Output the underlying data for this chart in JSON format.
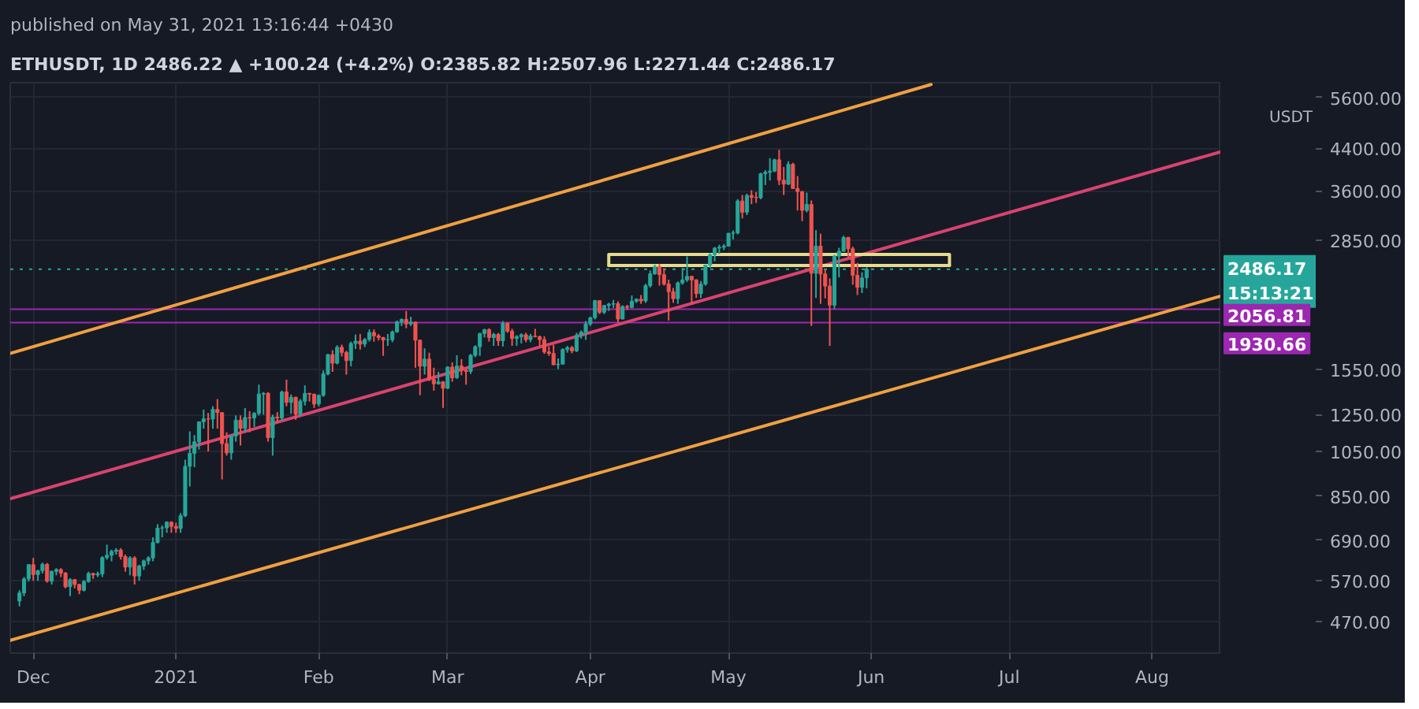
{
  "chart_data": {
    "type": "candlestick",
    "title": "published on May 31, 2021 13:16:44 +0430",
    "subtitle": "ETHUSDT, 1D 2486.22 ▲ +100.24 (+4.2%) O:2385.82 H:2507.96 L:2271.44 C:2486.17",
    "ylabel": "USDT",
    "x": [
      "2020-11-28",
      "2020-11-29",
      "2020-11-30",
      "2020-12-01",
      "2020-12-02",
      "2020-12-03",
      "2020-12-04",
      "2020-12-05",
      "2020-12-06",
      "2020-12-07",
      "2020-12-08",
      "2020-12-09",
      "2020-12-10",
      "2020-12-11",
      "2020-12-12",
      "2020-12-13",
      "2020-12-14",
      "2020-12-15",
      "2020-12-16",
      "2020-12-17",
      "2020-12-18",
      "2020-12-19",
      "2020-12-20",
      "2020-12-21",
      "2020-12-22",
      "2020-12-23",
      "2020-12-24",
      "2020-12-25",
      "2020-12-26",
      "2020-12-27",
      "2020-12-28",
      "2020-12-29",
      "2020-12-30",
      "2020-12-31",
      "2021-01-01",
      "2021-01-02",
      "2021-01-03",
      "2021-01-04",
      "2021-01-05",
      "2021-01-06",
      "2021-01-07",
      "2021-01-08",
      "2021-01-09",
      "2021-01-10",
      "2021-01-11",
      "2021-01-12",
      "2021-01-13",
      "2021-01-14",
      "2021-01-15",
      "2021-01-16",
      "2021-01-17",
      "2021-01-18",
      "2021-01-19",
      "2021-01-20",
      "2021-01-21",
      "2021-01-22",
      "2021-01-23",
      "2021-01-24",
      "2021-01-25",
      "2021-01-26",
      "2021-01-27",
      "2021-01-28",
      "2021-01-29",
      "2021-01-30",
      "2021-01-31",
      "2021-02-01",
      "2021-02-02",
      "2021-02-03",
      "2021-02-04",
      "2021-02-05",
      "2021-02-06",
      "2021-02-07",
      "2021-02-08",
      "2021-02-09",
      "2021-02-10",
      "2021-02-11",
      "2021-02-12",
      "2021-02-13",
      "2021-02-14",
      "2021-02-15",
      "2021-02-16",
      "2021-02-17",
      "2021-02-18",
      "2021-02-19",
      "2021-02-20",
      "2021-02-21",
      "2021-02-22",
      "2021-02-23",
      "2021-02-24",
      "2021-02-25",
      "2021-02-26",
      "2021-02-27",
      "2021-02-28",
      "2021-03-01",
      "2021-03-02",
      "2021-03-03",
      "2021-03-04",
      "2021-03-05",
      "2021-03-06",
      "2021-03-07",
      "2021-03-08",
      "2021-03-09",
      "2021-03-10",
      "2021-03-11",
      "2021-03-12",
      "2021-03-13",
      "2021-03-14",
      "2021-03-15",
      "2021-03-16",
      "2021-03-17",
      "2021-03-18",
      "2021-03-19",
      "2021-03-20",
      "2021-03-21",
      "2021-03-22",
      "2021-03-23",
      "2021-03-24",
      "2021-03-25",
      "2021-03-26",
      "2021-03-27",
      "2021-03-28",
      "2021-03-29",
      "2021-03-30",
      "2021-03-31",
      "2021-04-01",
      "2021-04-02",
      "2021-04-03",
      "2021-04-04",
      "2021-04-05",
      "2021-04-06",
      "2021-04-07",
      "2021-04-08",
      "2021-04-09",
      "2021-04-10",
      "2021-04-11",
      "2021-04-12",
      "2021-04-13",
      "2021-04-14",
      "2021-04-15",
      "2021-04-16",
      "2021-04-17",
      "2021-04-18",
      "2021-04-19",
      "2021-04-20",
      "2021-04-21",
      "2021-04-22",
      "2021-04-23",
      "2021-04-24",
      "2021-04-25",
      "2021-04-26",
      "2021-04-27",
      "2021-04-28",
      "2021-04-29",
      "2021-04-30",
      "2021-05-01",
      "2021-05-02",
      "2021-05-03",
      "2021-05-04",
      "2021-05-05",
      "2021-05-06",
      "2021-05-07",
      "2021-05-08",
      "2021-05-09",
      "2021-05-10",
      "2021-05-11",
      "2021-05-12",
      "2021-05-13",
      "2021-05-14",
      "2021-05-15",
      "2021-05-16",
      "2021-05-17",
      "2021-05-18",
      "2021-05-19",
      "2021-05-20",
      "2021-05-21",
      "2021-05-22",
      "2021-05-23",
      "2021-05-24",
      "2021-05-25",
      "2021-05-26",
      "2021-05-27",
      "2021-05-28",
      "2021-05-29",
      "2021-05-30",
      "2021-05-31"
    ],
    "ohlc": [
      [
        518,
        545,
        505,
        538
      ],
      [
        538,
        580,
        530,
        575
      ],
      [
        575,
        617,
        568,
        615
      ],
      [
        615,
        635,
        570,
        587
      ],
      [
        587,
        600,
        570,
        598
      ],
      [
        598,
        621,
        590,
        616
      ],
      [
        616,
        620,
        565,
        569
      ],
      [
        569,
        598,
        560,
        596
      ],
      [
        596,
        605,
        585,
        601
      ],
      [
        601,
        605,
        580,
        591
      ],
      [
        591,
        594,
        550,
        554
      ],
      [
        554,
        577,
        530,
        573
      ],
      [
        573,
        575,
        550,
        560
      ],
      [
        560,
        562,
        535,
        545
      ],
      [
        545,
        572,
        542,
        568
      ],
      [
        568,
        595,
        565,
        590
      ],
      [
        590,
        592,
        575,
        586
      ],
      [
        586,
        595,
        580,
        589
      ],
      [
        589,
        640,
        580,
        636
      ],
      [
        636,
        676,
        630,
        643
      ],
      [
        643,
        660,
        625,
        655
      ],
      [
        655,
        665,
        645,
        659
      ],
      [
        659,
        665,
        630,
        639
      ],
      [
        639,
        645,
        595,
        608
      ],
      [
        608,
        640,
        585,
        635
      ],
      [
        635,
        640,
        560,
        583
      ],
      [
        583,
        615,
        570,
        611
      ],
      [
        611,
        630,
        600,
        626
      ],
      [
        626,
        640,
        615,
        635
      ],
      [
        635,
        700,
        625,
        683
      ],
      [
        683,
        745,
        680,
        731
      ],
      [
        731,
        740,
        700,
        732
      ],
      [
        732,
        755,
        715,
        752
      ],
      [
        752,
        755,
        715,
        737
      ],
      [
        737,
        750,
        715,
        730
      ],
      [
        730,
        785,
        715,
        775
      ],
      [
        775,
        1010,
        770,
        979
      ],
      [
        979,
        1155,
        890,
        1041
      ],
      [
        1041,
        1135,
        975,
        1099
      ],
      [
        1099,
        1210,
        1060,
        1208
      ],
      [
        1208,
        1280,
        1170,
        1225
      ],
      [
        1225,
        1260,
        1050,
        1224
      ],
      [
        1224,
        1300,
        1170,
        1281
      ],
      [
        1281,
        1345,
        1170,
        1262
      ],
      [
        1262,
        1265,
        920,
        1090
      ],
      [
        1090,
        1150,
        1030,
        1043
      ],
      [
        1043,
        1135,
        1010,
        1130
      ],
      [
        1130,
        1245,
        1100,
        1218
      ],
      [
        1218,
        1245,
        1080,
        1171
      ],
      [
        1171,
        1290,
        1150,
        1233
      ],
      [
        1233,
        1270,
        1150,
        1230
      ],
      [
        1230,
        1265,
        1180,
        1257
      ],
      [
        1257,
        1440,
        1245,
        1377
      ],
      [
        1377,
        1390,
        1250,
        1382
      ],
      [
        1382,
        1390,
        1100,
        1121
      ],
      [
        1121,
        1250,
        1030,
        1236
      ],
      [
        1236,
        1265,
        1200,
        1230
      ],
      [
        1230,
        1400,
        1215,
        1391
      ],
      [
        1391,
        1475,
        1300,
        1324
      ],
      [
        1324,
        1375,
        1255,
        1357
      ],
      [
        1357,
        1360,
        1220,
        1253
      ],
      [
        1253,
        1345,
        1240,
        1332
      ],
      [
        1332,
        1435,
        1305,
        1382
      ],
      [
        1382,
        1385,
        1330,
        1377
      ],
      [
        1377,
        1380,
        1290,
        1314
      ],
      [
        1314,
        1375,
        1300,
        1369
      ],
      [
        1369,
        1540,
        1360,
        1515
      ],
      [
        1515,
        1665,
        1505,
        1660
      ],
      [
        1660,
        1695,
        1530,
        1594
      ],
      [
        1594,
        1735,
        1585,
        1718
      ],
      [
        1718,
        1740,
        1645,
        1677
      ],
      [
        1677,
        1690,
        1510,
        1614
      ],
      [
        1614,
        1765,
        1570,
        1750
      ],
      [
        1750,
        1825,
        1705,
        1769
      ],
      [
        1769,
        1830,
        1700,
        1744
      ],
      [
        1744,
        1795,
        1720,
        1783
      ],
      [
        1783,
        1870,
        1765,
        1843
      ],
      [
        1843,
        1870,
        1765,
        1814
      ],
      [
        1814,
        1830,
        1775,
        1800
      ],
      [
        1800,
        1805,
        1650,
        1779
      ],
      [
        1779,
        1830,
        1730,
        1781
      ],
      [
        1781,
        1860,
        1760,
        1848
      ],
      [
        1848,
        1950,
        1840,
        1938
      ],
      [
        1938,
        1970,
        1900,
        1960
      ],
      [
        1960,
        2040,
        1880,
        1919
      ],
      [
        1919,
        1985,
        1900,
        1935
      ],
      [
        1935,
        1940,
        1560,
        1777
      ],
      [
        1777,
        1780,
        1370,
        1571
      ],
      [
        1571,
        1710,
        1510,
        1625
      ],
      [
        1625,
        1675,
        1465,
        1475
      ],
      [
        1475,
        1560,
        1400,
        1446
      ],
      [
        1446,
        1530,
        1440,
        1459
      ],
      [
        1459,
        1465,
        1290,
        1416
      ],
      [
        1416,
        1570,
        1410,
        1565
      ],
      [
        1565,
        1600,
        1460,
        1487
      ],
      [
        1487,
        1655,
        1480,
        1573
      ],
      [
        1573,
        1625,
        1505,
        1541
      ],
      [
        1541,
        1550,
        1440,
        1533
      ],
      [
        1533,
        1665,
        1515,
        1654
      ],
      [
        1654,
        1735,
        1640,
        1723
      ],
      [
        1723,
        1840,
        1650,
        1834
      ],
      [
        1834,
        1875,
        1800,
        1868
      ],
      [
        1868,
        1880,
        1765,
        1799
      ],
      [
        1799,
        1840,
        1730,
        1826
      ],
      [
        1826,
        1840,
        1730,
        1772
      ],
      [
        1772,
        1945,
        1725,
        1924
      ],
      [
        1924,
        1935,
        1840,
        1854
      ],
      [
        1854,
        1875,
        1730,
        1791
      ],
      [
        1791,
        1820,
        1730,
        1806
      ],
      [
        1806,
        1835,
        1750,
        1823
      ],
      [
        1823,
        1840,
        1760,
        1782
      ],
      [
        1782,
        1830,
        1760,
        1811
      ],
      [
        1811,
        1875,
        1800,
        1807
      ],
      [
        1807,
        1815,
        1730,
        1782
      ],
      [
        1782,
        1810,
        1665,
        1681
      ],
      [
        1681,
        1725,
        1650,
        1669
      ],
      [
        1669,
        1740,
        1580,
        1582
      ],
      [
        1582,
        1630,
        1550,
        1587
      ],
      [
        1587,
        1710,
        1585,
        1700
      ],
      [
        1700,
        1730,
        1675,
        1715
      ],
      [
        1715,
        1730,
        1670,
        1689
      ],
      [
        1689,
        1840,
        1680,
        1817
      ],
      [
        1817,
        1860,
        1790,
        1846
      ],
      [
        1846,
        1945,
        1780,
        1919
      ],
      [
        1919,
        1985,
        1900,
        1977
      ],
      [
        1977,
        2150,
        1960,
        2143
      ],
      [
        2143,
        2145,
        2010,
        2028
      ],
      [
        2028,
        2100,
        2010,
        2093
      ],
      [
        2093,
        2120,
        2040,
        2107
      ],
      [
        2107,
        2150,
        2070,
        2112
      ],
      [
        2112,
        2135,
        1930,
        1964
      ],
      [
        1964,
        2095,
        1960,
        2084
      ],
      [
        2084,
        2100,
        2050,
        2075
      ],
      [
        2075,
        2195,
        2065,
        2135
      ],
      [
        2135,
        2165,
        2120,
        2157
      ],
      [
        2157,
        2200,
        2110,
        2139
      ],
      [
        2139,
        2320,
        2120,
        2299
      ],
      [
        2299,
        2470,
        2280,
        2432
      ],
      [
        2432,
        2540,
        2420,
        2514
      ],
      [
        2514,
        2550,
        2300,
        2422
      ],
      [
        2422,
        2495,
        2300,
        2317
      ],
      [
        2317,
        2365,
        1950,
        2235
      ],
      [
        2235,
        2275,
        2120,
        2162
      ],
      [
        2162,
        2345,
        2110,
        2330
      ],
      [
        2330,
        2500,
        2310,
        2363
      ],
      [
        2363,
        2640,
        2340,
        2403
      ],
      [
        2403,
        2410,
        2100,
        2363
      ],
      [
        2363,
        2370,
        2170,
        2214
      ],
      [
        2214,
        2350,
        2170,
        2316
      ],
      [
        2316,
        2540,
        2300,
        2534
      ],
      [
        2534,
        2680,
        2500,
        2662
      ],
      [
        2662,
        2760,
        2580,
        2746
      ],
      [
        2746,
        2790,
        2670,
        2757
      ],
      [
        2757,
        2800,
        2720,
        2772
      ],
      [
        2772,
        2950,
        2770,
        2945
      ],
      [
        2945,
        2985,
        2860,
        2949
      ],
      [
        2949,
        3460,
        2930,
        3431
      ],
      [
        3431,
        3530,
        3160,
        3253
      ],
      [
        3253,
        3550,
        3210,
        3522
      ],
      [
        3522,
        3610,
        3380,
        3490
      ],
      [
        3490,
        3580,
        3400,
        3484
      ],
      [
        3484,
        3920,
        3460,
        3902
      ],
      [
        3902,
        3970,
        3700,
        3928
      ],
      [
        3928,
        4200,
        3780,
        3952
      ],
      [
        3952,
        4190,
        3930,
        4168
      ],
      [
        4168,
        4370,
        3700,
        3785
      ],
      [
        3785,
        4030,
        3530,
        3715
      ],
      [
        3715,
        4140,
        3700,
        4079
      ],
      [
        4079,
        4110,
        3630,
        3638
      ],
      [
        3638,
        3860,
        3280,
        3587
      ],
      [
        3587,
        3595,
        3120,
        3282
      ],
      [
        3282,
        3570,
        3250,
        3375
      ],
      [
        3375,
        3440,
        1900,
        2438
      ],
      [
        2438,
        2990,
        2170,
        2772
      ],
      [
        2772,
        2940,
        2110,
        2430
      ],
      [
        2430,
        2480,
        2165,
        2295
      ],
      [
        2295,
        2380,
        1730,
        2097
      ],
      [
        2097,
        2660,
        2060,
        2643
      ],
      [
        2643,
        2750,
        2390,
        2705
      ],
      [
        2705,
        2910,
        2700,
        2888
      ],
      [
        2888,
        2895,
        2630,
        2737
      ],
      [
        2737,
        2765,
        2310,
        2414
      ],
      [
        2414,
        2560,
        2200,
        2281
      ],
      [
        2281,
        2450,
        2220,
        2385
      ],
      [
        2385.82,
        2507.96,
        2271.44,
        2486.17
      ]
    ],
    "colors": [
      "#26a69a",
      "#26a69a",
      "#26a69a",
      "#ef5350",
      "#26a69a",
      "#26a69a",
      "#ef5350",
      "#26a69a",
      "#26a69a",
      "#ef5350",
      "#ef5350",
      "#26a69a",
      "#ef5350",
      "#ef5350",
      "#26a69a",
      "#26a69a",
      "#ef5350",
      "#26a69a",
      "#26a69a",
      "#26a69a",
      "#26a69a",
      "#26a69a",
      "#ef5350",
      "#ef5350",
      "#26a69a",
      "#ef5350",
      "#26a69a",
      "#26a69a",
      "#26a69a",
      "#26a69a",
      "#26a69a",
      "#26a69a",
      "#26a69a",
      "#ef5350",
      "#ef5350",
      "#26a69a",
      "#26a69a",
      "#26a69a",
      "#26a69a",
      "#26a69a",
      "#26a69a",
      "#ef5350",
      "#26a69a",
      "#ef5350",
      "#ef5350",
      "#ef5350",
      "#26a69a",
      "#26a69a",
      "#ef5350",
      "#26a69a",
      "#ef5350",
      "#26a69a",
      "#26a69a",
      "#26a69a",
      "#ef5350",
      "#26a69a",
      "#ef5350",
      "#26a69a",
      "#ef5350",
      "#26a69a",
      "#ef5350",
      "#26a69a",
      "#26a69a",
      "#ef5350",
      "#ef5350",
      "#26a69a",
      "#26a69a",
      "#26a69a",
      "#ef5350",
      "#26a69a",
      "#ef5350",
      "#ef5350",
      "#26a69a",
      "#26a69a",
      "#ef5350",
      "#26a69a",
      "#26a69a",
      "#ef5350",
      "#ef5350",
      "#ef5350",
      "#26a69a",
      "#26a69a",
      "#26a69a",
      "#26a69a",
      "#ef5350",
      "#26a69a",
      "#ef5350",
      "#ef5350",
      "#26a69a",
      "#ef5350",
      "#ef5350",
      "#26a69a",
      "#ef5350",
      "#26a69a",
      "#ef5350",
      "#26a69a",
      "#ef5350",
      "#ef5350",
      "#26a69a",
      "#26a69a",
      "#26a69a",
      "#26a69a",
      "#ef5350",
      "#26a69a",
      "#ef5350",
      "#26a69a",
      "#ef5350",
      "#ef5350",
      "#26a69a",
      "#26a69a",
      "#ef5350",
      "#26a69a",
      "#ef5350",
      "#ef5350",
      "#ef5350",
      "#ef5350",
      "#ef5350",
      "#26a69a",
      "#26a69a",
      "#26a69a",
      "#ef5350",
      "#26a69a",
      "#26a69a",
      "#26a69a",
      "#26a69a",
      "#26a69a",
      "#ef5350",
      "#26a69a",
      "#26a69a",
      "#26a69a",
      "#ef5350",
      "#26a69a",
      "#ef5350",
      "#26a69a",
      "#26a69a",
      "#ef5350",
      "#26a69a",
      "#26a69a",
      "#26a69a",
      "#ef5350",
      "#ef5350",
      "#ef5350",
      "#ef5350",
      "#26a69a",
      "#26a69a",
      "#26a69a",
      "#ef5350",
      "#ef5350",
      "#26a69a",
      "#26a69a",
      "#26a69a",
      "#26a69a",
      "#26a69a",
      "#26a69a",
      "#26a69a",
      "#26a69a",
      "#26a69a",
      "#ef5350",
      "#26a69a",
      "#ef5350",
      "#ef5350",
      "#26a69a",
      "#26a69a",
      "#26a69a",
      "#26a69a",
      "#ef5350",
      "#ef5350",
      "#26a69a",
      "#ef5350",
      "#ef5350",
      "#ef5350",
      "#26a69a",
      "#ef5350",
      "#26a69a",
      "#ef5350",
      "#ef5350",
      "#ef5350",
      "#26a69a",
      "#26a69a",
      "#26a69a",
      "#ef5350",
      "#ef5350",
      "#ef5350",
      "#26a69a",
      "#26a69a"
    ],
    "series": [
      {
        "type": "line",
        "color": "#f0a040",
        "x": [
          "2020-11-26",
          "2021-06-14"
        ],
        "values": [
          1670,
          5950
        ]
      },
      {
        "type": "line",
        "color": "#d8436f",
        "x": [
          "2020-11-26",
          "2021-08-16"
        ],
        "values": [
          840,
          4330
        ]
      },
      {
        "type": "line",
        "color": "#f0a040",
        "x": [
          "2020-11-26",
          "2021-08-16"
        ],
        "values": [
          430,
          2190
        ]
      },
      {
        "type": "line",
        "color": "#e6dc8c",
        "x": [
          "2021-04-05",
          "2021-04-05",
          "2021-06-18",
          "2021-06-18"
        ],
        "values": [
          2530,
          2665,
          2665,
          2530
        ]
      },
      {
        "type": "line",
        "color": "#e6dc8c",
        "x": [
          "2021-04-05",
          "2021-06-18"
        ],
        "values": [
          2530,
          2530
        ]
      }
    ],
    "ref_lines": [
      {
        "axis": "y",
        "value": 2486.17,
        "label": "2486.17\n15:13:21",
        "color": "#26a69a",
        "line_style": "dotted"
      },
      {
        "axis": "y",
        "value": 2056.81,
        "label": "2056.81",
        "color": "#9c27b0"
      },
      {
        "axis": "y",
        "value": 1930.66,
        "label": "1930.66",
        "color": "#9c27b0"
      }
    ],
    "xlim": [
      "2020-11-26",
      "2021-08-16"
    ],
    "xticks": [
      {
        "value": "2020-12-01",
        "label": "Dec"
      },
      {
        "value": "2021-01-01",
        "label": "2021"
      },
      {
        "value": "2021-02-01",
        "label": "Feb"
      },
      {
        "value": "2021-03-01",
        "label": "Mar"
      },
      {
        "value": "2021-04-01",
        "label": "Apr"
      },
      {
        "value": "2021-05-01",
        "label": "May"
      },
      {
        "value": "2021-06-01",
        "label": "Jun"
      },
      {
        "value": "2021-07-01",
        "label": "Jul"
      },
      {
        "value": "2021-08-01",
        "label": "Aug"
      }
    ],
    "ylim": [
      405,
      6000
    ],
    "yticks": [
      {
        "value": 470,
        "label": "470.00"
      },
      {
        "value": 570,
        "label": "570.00"
      },
      {
        "value": 690,
        "label": "690.00"
      },
      {
        "value": 850,
        "label": "850.00"
      },
      {
        "value": 1050,
        "label": "1050.00"
      },
      {
        "value": 1250,
        "label": "1250.00"
      },
      {
        "value": 1550,
        "label": "1550.00"
      },
      {
        "value": 2850,
        "label": "2850.00"
      },
      {
        "value": 3600,
        "label": "3600.00"
      },
      {
        "value": 4400,
        "label": "4400.00"
      },
      {
        "value": 5600,
        "label": "5600.00"
      }
    ],
    "log": true,
    "grid": true
  }
}
